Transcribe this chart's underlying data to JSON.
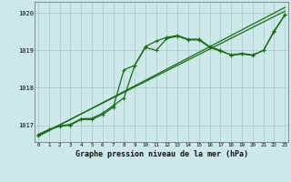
{
  "title": "Graphe pression niveau de la mer (hPa)",
  "background_color": "#cce8e8",
  "grid_color": "#aacfcf",
  "line_color": "#1a6b1a",
  "x_ticks": [
    0,
    1,
    2,
    3,
    4,
    5,
    6,
    7,
    8,
    9,
    10,
    11,
    12,
    13,
    14,
    15,
    16,
    17,
    18,
    19,
    20,
    21,
    22,
    23
  ],
  "y_ticks": [
    1017,
    1018,
    1019,
    1020
  ],
  "ylim": [
    1016.55,
    1020.3
  ],
  "xlim": [
    -0.3,
    23.3
  ],
  "line1_x": [
    0,
    23
  ],
  "line1_y": [
    1016.7,
    1020.15
  ],
  "line2_x": [
    0,
    23
  ],
  "line2_y": [
    1016.72,
    1020.05
  ],
  "line3_x": [
    0,
    1,
    2,
    3,
    4,
    5,
    6,
    7,
    8,
    9,
    10,
    11,
    12,
    13,
    14,
    15,
    16,
    17,
    18,
    19,
    20,
    21,
    22,
    23
  ],
  "line3_y": [
    1016.75,
    1016.88,
    1016.98,
    1017.02,
    1017.17,
    1017.18,
    1017.32,
    1017.52,
    1017.73,
    1018.6,
    1019.08,
    1019.0,
    1019.32,
    1019.38,
    1019.28,
    1019.28,
    1019.08,
    1018.98,
    1018.88,
    1018.92,
    1018.88,
    1019.0,
    1019.5,
    1019.95
  ],
  "line4_x": [
    0,
    1,
    2,
    3,
    4,
    5,
    6,
    7,
    8,
    9,
    10,
    11,
    12,
    13,
    14,
    15,
    16,
    17,
    18,
    19,
    20,
    21,
    22,
    23
  ],
  "line4_y": [
    1016.72,
    1016.88,
    1016.97,
    1017.0,
    1017.15,
    1017.15,
    1017.28,
    1017.48,
    1018.48,
    1018.6,
    1019.1,
    1019.25,
    1019.35,
    1019.4,
    1019.3,
    1019.3,
    1019.1,
    1019.0,
    1018.87,
    1018.9,
    1018.87,
    1019.0,
    1019.52,
    1019.95
  ]
}
